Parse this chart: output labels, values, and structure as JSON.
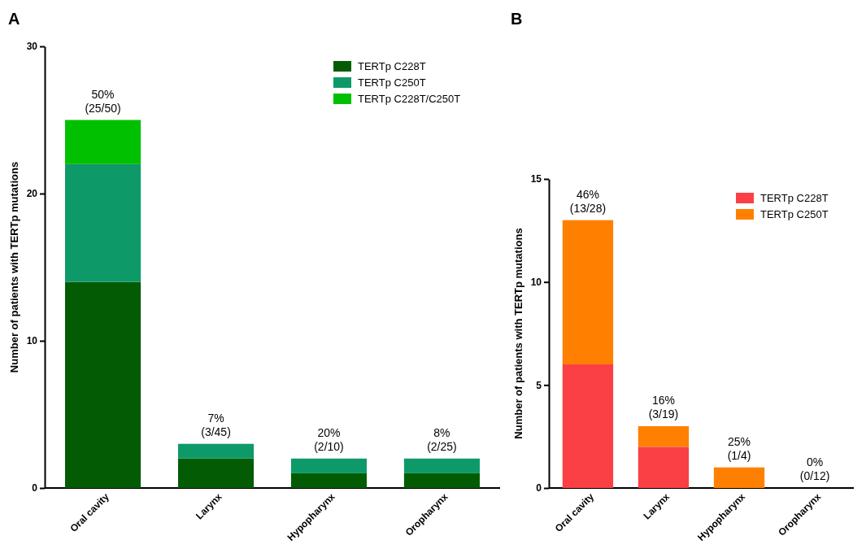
{
  "chart_data": [
    {
      "type": "bar",
      "title": "A",
      "ylabel": "Number of patients with TERTp mutations",
      "categories": [
        "Oral cavity",
        "Larynx",
        "Hypopharynx",
        "Oropharynx"
      ],
      "stacked": true,
      "ylim": [
        0,
        30
      ],
      "yticks": [
        0,
        10,
        20,
        30
      ],
      "legend": "top right",
      "grid": false,
      "series": [
        {
          "name": "TERTp C228T",
          "color": "#035c03",
          "values": [
            14,
            2,
            1,
            1
          ]
        },
        {
          "name": "TERTp C250T",
          "color": "#0e9a68",
          "values": [
            8,
            1,
            1,
            1
          ]
        },
        {
          "name": "TERTp C228T/C250T",
          "color": "#00c000",
          "values": [
            3,
            0,
            0,
            0
          ]
        }
      ],
      "totals": [
        "50%\n(25/50)",
        "7%\n(3/45)",
        "20%\n(2/10)",
        "8%\n(2/25)"
      ]
    },
    {
      "type": "bar",
      "title": "B",
      "ylabel": "Number of patients with TERTp mutations",
      "categories": [
        "Oral cavity",
        "Larynx",
        "Hypopharynx",
        "Oropharynx"
      ],
      "stacked": true,
      "ylim": [
        0,
        15
      ],
      "yticks": [
        0,
        5,
        10,
        15
      ],
      "legend": "top right",
      "grid": false,
      "series": [
        {
          "name": "TERTp C228T",
          "color": "#fa4045",
          "values": [
            6,
            2,
            0,
            0
          ]
        },
        {
          "name": "TERTp C250T",
          "color": "#ff8000",
          "values": [
            7,
            1,
            1,
            0
          ]
        }
      ],
      "totals": [
        "46%\n(13/28)",
        "16%\n(3/19)",
        "25%\n(1/4)",
        "0%\n(0/12)"
      ]
    }
  ]
}
